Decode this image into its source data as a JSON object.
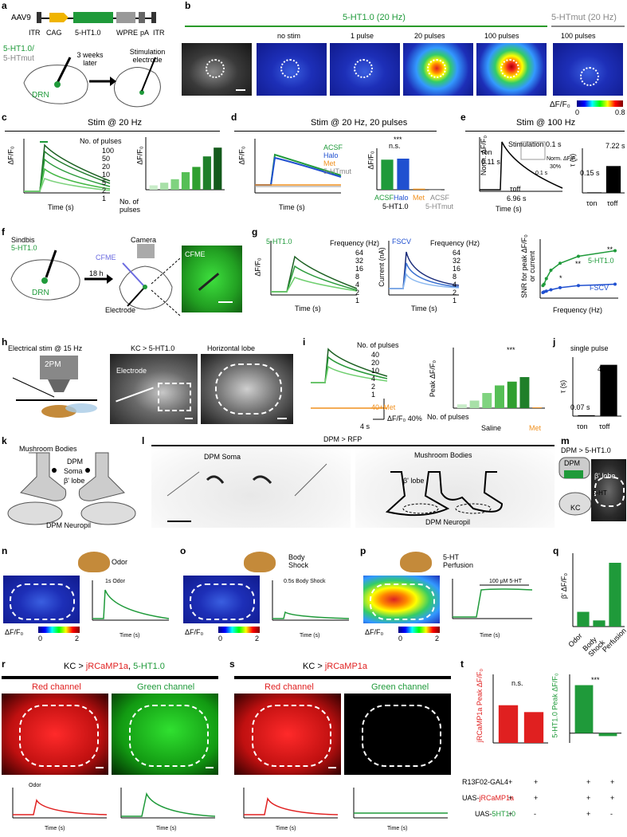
{
  "panels": {
    "a": {
      "label": "a",
      "aav": "AAV9",
      "construct": [
        "ITR",
        "CAG",
        "5-HT1.0",
        "WPRE",
        "pA",
        "ITR"
      ],
      "sensor1": "5-HT1.0/",
      "sensor2": "5-HTmut",
      "region": "DRN",
      "wait": "3 weeks later",
      "stim": "Stimulation electrode"
    },
    "b": {
      "label": "b",
      "group1": "5-HT1.0 (20 Hz)",
      "group2": "5-HTmut (20 Hz)",
      "cols": [
        "no stim",
        "1 pulse",
        "20 pulses",
        "100 pulses",
        "100 pulses"
      ],
      "cbar_label": "ΔF/F₀",
      "cbar_min": "0",
      "cbar_max": "0.8"
    },
    "c": {
      "label": "c",
      "title": "Stim @ 20 Hz",
      "ylabel": "ΔF/F₀",
      "xlabel": "Time (s)",
      "legend_title": "No. of pulses",
      "pulses": [
        "100",
        "50",
        "20",
        "10",
        "5",
        "2",
        "1"
      ],
      "bar_xlabel": "No. of pulses",
      "bar_cats": [
        "1",
        "2",
        "5",
        "10",
        "20",
        "50",
        "100"
      ],
      "bar_ylabel": "ΔF/F₀"
    },
    "d": {
      "label": "d",
      "title": "Stim @ 20 Hz, 20 pulses",
      "legend": [
        "ACSF",
        "Halo",
        "Met",
        "5-HTmut"
      ],
      "xlabel": "Time (s)",
      "ylabel": "ΔF/F₀",
      "bars": [
        "ACSF",
        "Halo",
        "Met",
        "ACSF"
      ],
      "group1": "5-HT1.0",
      "group2": "5-HTmut",
      "ns": "n.s.",
      "sig": "***"
    },
    "e": {
      "label": "e",
      "title": "Stim @ 100 Hz",
      "ylabel": "Norm. ΔF/F₀",
      "xlabel": "Time (s)",
      "stim": "Stimulation 0.1 s",
      "ton": "τon",
      "ton_val": "0.11 s",
      "toff": "τoff",
      "toff_val": "6.96 s",
      "inset": "Norm. ΔF/F₀",
      "inset_scale": "30%",
      "inset_time": "0.1 s",
      "bar_ylabel": "τ (s)",
      "bar_ton": "0.15 s",
      "bar_toff": "7.22 s",
      "bar_x": [
        "τon",
        "τoff"
      ]
    },
    "f": {
      "label": "f",
      "virus": "Sindbis",
      "sensor": "5-HT1.0",
      "region": "DRN",
      "time": "18 h",
      "camera": "Camera",
      "cfme": "CFME",
      "electrode": "Electrode",
      "img_label": "CFME"
    },
    "g": {
      "label": "g",
      "t1": "5-HT1.0",
      "t2": "FSCV",
      "freq_title": "Frequency (Hz)",
      "freqs": [
        "64",
        "32",
        "16",
        "8",
        "4",
        "2",
        "1"
      ],
      "ylabel1": "ΔF/F₀",
      "ylabel2": "Current (nA)",
      "xlabel": "Time (s)",
      "snr_ylabel": "SNR for peak ΔF/F₀ or current",
      "snr_xlabel": "Frequency (Hz)",
      "snr_s1": "5-HT1.0",
      "snr_s2": "FSCV",
      "star1": "*",
      "star2": "**",
      "star3": "**"
    },
    "h": {
      "label": "h",
      "title": "Electrical stim @ 15 Hz",
      "scope": "2PM",
      "kc": "KC > 5-HT1.0",
      "electrode": "Electrode",
      "lobe": "Horizontal lobe"
    },
    "i": {
      "label": "i",
      "legend_title": "No. of pulses",
      "pulses": [
        "40",
        "20",
        "10",
        "4",
        "2",
        "1"
      ],
      "met": "40+Met",
      "scale_y": "ΔF/F₀ 40%",
      "scale_x": "4 s",
      "bar_ylabel": "Peak ΔF/F₀",
      "bar_cats": [
        "1",
        "2",
        "4",
        "10",
        "20",
        "40",
        "40"
      ],
      "bar_x": "No. of pulses",
      "saline": "Saline",
      "met_lbl": "Met",
      "sig": "***"
    },
    "j": {
      "label": "j",
      "title": "single pulse",
      "ylabel": "τ (s)",
      "ton": "0.07 s",
      "toff": "4.08 s",
      "x": [
        "τon",
        "τoff"
      ]
    },
    "k": {
      "label": "k",
      "mb": "Mushroom Bodies",
      "dpm": "DPM",
      "soma": "Soma",
      "lobe": "β' lobe",
      "neuropil": "DPM Neuropil"
    },
    "l": {
      "label": "l",
      "title": "DPM > RFP",
      "soma": "DPM Soma",
      "mb": "Mushroom Bodies",
      "lobe": "β' lobe",
      "neuropil": "DPM Neuropil"
    },
    "m": {
      "label": "m",
      "title": "DPM > 5-HT1.0",
      "dpm": "DPM",
      "ht": "5-HT",
      "kc": "KC",
      "lobe": "β' lobe"
    },
    "n": {
      "label": "n",
      "stim": "Odor",
      "trace_lbl": "1s Odor",
      "cb_min": "0",
      "cb_max": "2",
      "cb_lbl": "ΔF/F₀",
      "xlabel": "Time (s)"
    },
    "o": {
      "label": "o",
      "stim": "Body Shock",
      "trace_lbl": "0.5s Body Shock",
      "cb_min": "0",
      "cb_max": "2",
      "cb_lbl": "ΔF/F₀",
      "xlabel": "Time (s)"
    },
    "p": {
      "label": "p",
      "stim": "5-HT Perfusion",
      "trace_lbl": "100 μM 5-HT",
      "cb_min": "0",
      "cb_max": "2",
      "cb_lbl": "ΔF/F₀",
      "xlabel": "Time (s)"
    },
    "q": {
      "label": "q",
      "ylabel": "β' ΔF/F₀",
      "cats": [
        "Odor",
        "Body Shock",
        "Perfusion"
      ]
    },
    "r": {
      "label": "r",
      "title1": "KC > ",
      "title2": "jRCaMP1a",
      "title3": ", ",
      "title4": "5-HT1.0",
      "red": "Red channel",
      "green": "Green channel",
      "odor": "Odor",
      "xlabel": "Time (s)"
    },
    "s": {
      "label": "s",
      "title1": "KC > ",
      "title2": "jRCaMP1a",
      "red": "Red channel",
      "green": "Green channel",
      "xlabel": "Time (s)"
    },
    "t": {
      "label": "t",
      "ylabel1": "jRCaMP1a Peak ΔF/F₀",
      "ylabel2": "5-HT1.0 Peak ΔF/F₀",
      "ns": "n.s.",
      "sig": "***",
      "row1": "R13F02-GAL4",
      "row2": "UAS-jRCaMP1a",
      "row3": "UAS-5HT1.0",
      "row2_name": "jRCaMP1a",
      "row3_name": "5HT1.0",
      "signs": [
        [
          "+",
          "+",
          "+",
          "+"
        ],
        [
          "+",
          "+",
          "+",
          "+"
        ],
        [
          "+",
          "-",
          "+",
          "-"
        ]
      ]
    }
  },
  "colors": {
    "green": "#1f8c2a",
    "red": "#e02020",
    "orange": "#f0901e",
    "blue": "#2050d0",
    "gray": "#8a8a8a"
  },
  "chart_data": [
    {
      "type": "bar",
      "id": "c-bar",
      "categories": [
        "1",
        "2",
        "5",
        "10",
        "20",
        "50",
        "100"
      ],
      "values": [
        0.05,
        0.08,
        0.12,
        0.2,
        0.26,
        0.38,
        0.48
      ],
      "ylim": [
        0,
        0.6
      ],
      "xlabel": "No. of pulses",
      "ylabel": "ΔF/F₀"
    },
    {
      "type": "bar",
      "id": "d-bar",
      "categories": [
        "ACSF",
        "Halo",
        "Met",
        "ACSF"
      ],
      "values": [
        0.29,
        0.3,
        0.01,
        0.0
      ],
      "ylim": [
        0,
        0.4
      ],
      "ylabel": "ΔF/F₀"
    },
    {
      "type": "bar",
      "id": "e-bar",
      "categories": [
        "τon",
        "τoff"
      ],
      "values": [
        0.15,
        7.22
      ],
      "ylim": [
        0,
        12
      ],
      "ylabel": "τ (s)"
    },
    {
      "type": "line",
      "id": "g-snr",
      "x": [
        1,
        2,
        4,
        8,
        16,
        32,
        64
      ],
      "series": [
        {
          "name": "5-HT1.0",
          "values": [
            18,
            20,
            28,
            40,
            50,
            60,
            68
          ]
        },
        {
          "name": "FSCV",
          "values": [
            8,
            9,
            10,
            12,
            15,
            18,
            20
          ]
        }
      ],
      "xlabel": "Frequency (Hz)",
      "ylabel": "SNR for peak ΔF/F₀ or current",
      "ylim": [
        0,
        80
      ]
    },
    {
      "type": "bar",
      "id": "i-bar",
      "categories": [
        "1",
        "2",
        "4",
        "10",
        "20",
        "40",
        "40"
      ],
      "values": [
        0.1,
        0.2,
        0.4,
        0.6,
        0.7,
        0.82,
        0.02
      ],
      "ylim": [
        0,
        1.6
      ],
      "ylabel": "Peak ΔF/F₀"
    },
    {
      "type": "bar",
      "id": "j-bar",
      "categories": [
        "τon",
        "τoff"
      ],
      "values": [
        0.07,
        4.08
      ],
      "ylabel": "τ (s)"
    },
    {
      "type": "bar",
      "id": "q-bar",
      "categories": [
        "Odor",
        "Body Shock",
        "Perfusion"
      ],
      "values": [
        0.6,
        0.25,
        2.6
      ],
      "ylabel": "β' ΔF/F₀"
    },
    {
      "type": "bar",
      "id": "t-bar1",
      "categories": [
        "+",
        "+"
      ],
      "values": [
        0.11,
        0.09
      ],
      "ylim": [
        0,
        0.2
      ],
      "ylabel": "jRCaMP1a Peak ΔF/F₀"
    },
    {
      "type": "bar",
      "id": "t-bar2",
      "categories": [
        "+",
        "-"
      ],
      "values": [
        0.49,
        -0.03
      ],
      "ylim": [
        -0.1,
        0.6
      ],
      "ylabel": "5-HT1.0 Peak ΔF/F₀"
    }
  ]
}
